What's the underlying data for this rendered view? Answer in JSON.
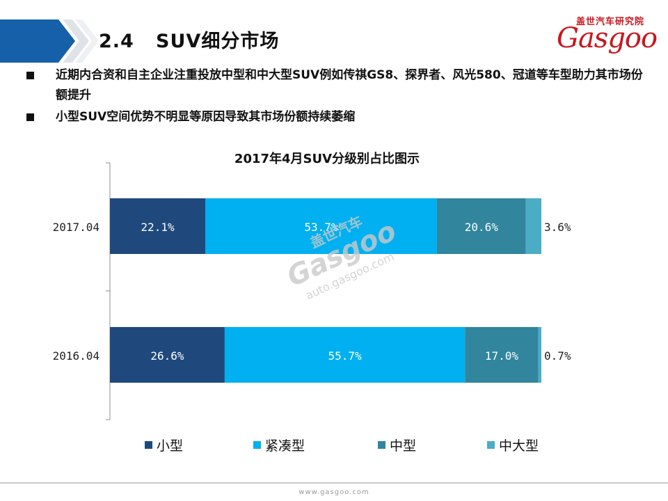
{
  "header": {
    "section_number": "2.4",
    "title": "SUV细分市场"
  },
  "brand": {
    "name_cn": "盖世汽车研究院",
    "wordmark": "Gasgoo",
    "color": "#c8161d"
  },
  "bullets": [
    "近期内合资和自主企业注重投放中型和中大型SUV例如传祺GS8、探界者、风光580、冠道等车型助力其市场份额提升",
    "小型SUV空间优势不明显等原因导致其市场份额持续萎缩"
  ],
  "watermark": {
    "cn": "盖世汽车",
    "word": "Gasgoo",
    "domain": "auto.gasgoo.com"
  },
  "chart_data": {
    "type": "bar",
    "orientation": "horizontal",
    "stacked": true,
    "title": "2017年4月SUV分级别占比图示",
    "categories": [
      "2017.04",
      "2016.04"
    ],
    "series": [
      {
        "name": "小型",
        "values": [
          22.1,
          26.6
        ],
        "labels": [
          "22.1%",
          "26.6%"
        ],
        "color": "#1f497d"
      },
      {
        "name": "紧凑型",
        "values": [
          53.7,
          55.7
        ],
        "labels": [
          "53.7%",
          "55.7%"
        ],
        "color": "#00b0f0"
      },
      {
        "name": "中型",
        "values": [
          20.6,
          17.0
        ],
        "labels": [
          "20.6%",
          "17.0%"
        ],
        "color": "#31859c"
      },
      {
        "name": "中大型",
        "values": [
          3.6,
          0.7
        ],
        "labels": [
          "3.6%",
          "0.7%"
        ],
        "color": "#4bacc6"
      }
    ],
    "xlim": [
      0,
      100
    ],
    "grid": false,
    "legend_position": "bottom"
  },
  "footer": {
    "url": "www.gasgoo.com"
  }
}
